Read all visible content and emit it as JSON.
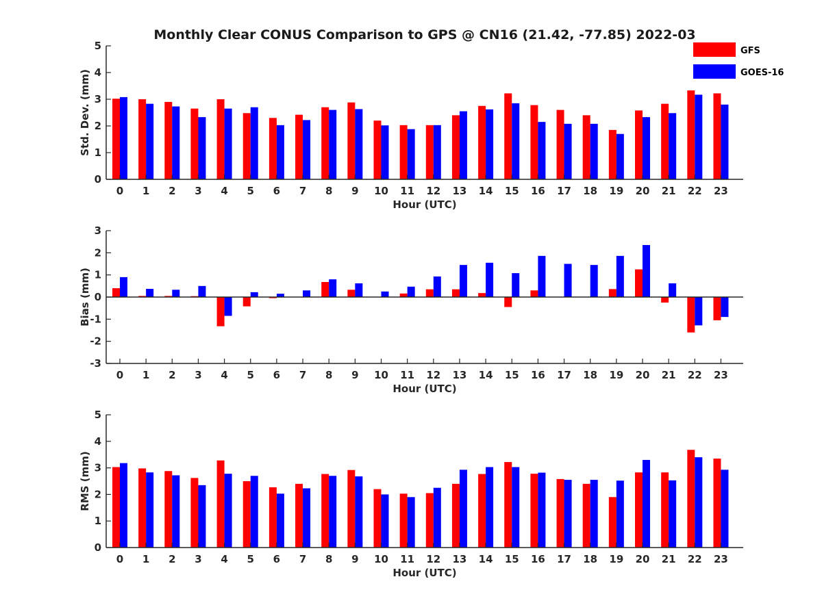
{
  "title": "Monthly Clear CONUS Comparison to GPS @ CN16 (21.42, -77.85) 2022-03",
  "legend": [
    {
      "name": "GFS",
      "color": "#ff0000"
    },
    {
      "name": "GOES-16",
      "color": "#0000ff"
    }
  ],
  "chart_data": [
    {
      "type": "bar",
      "xlabel": "Hour (UTC)",
      "ylabel": "Std. Dev. (mm)",
      "ylim": [
        0,
        5
      ],
      "yticks": [
        0,
        1,
        2,
        3,
        4,
        5
      ],
      "categories": [
        "0",
        "1",
        "2",
        "3",
        "4",
        "5",
        "6",
        "7",
        "8",
        "9",
        "10",
        "11",
        "12",
        "13",
        "14",
        "15",
        "16",
        "17",
        "18",
        "19",
        "20",
        "21",
        "22",
        "23"
      ],
      "series": [
        {
          "name": "GFS",
          "color": "#ff0000",
          "values": [
            3.02,
            3.0,
            2.9,
            2.65,
            3.0,
            2.48,
            2.3,
            2.42,
            2.7,
            2.88,
            2.2,
            2.03,
            2.03,
            2.4,
            2.75,
            3.22,
            2.78,
            2.6,
            2.4,
            1.85,
            2.58,
            2.83,
            3.33,
            3.22
          ]
        },
        {
          "name": "GOES-16",
          "color": "#0000ff",
          "values": [
            3.08,
            2.83,
            2.73,
            2.33,
            2.65,
            2.7,
            2.03,
            2.22,
            2.6,
            2.63,
            2.02,
            1.88,
            2.03,
            2.55,
            2.62,
            2.85,
            2.15,
            2.08,
            2.08,
            1.7,
            2.33,
            2.48,
            3.17,
            2.8
          ]
        }
      ]
    },
    {
      "type": "bar",
      "xlabel": "Hour (UTC)",
      "ylabel": "Bias (mm)",
      "ylim": [
        -3,
        3
      ],
      "yticks": [
        -3,
        -2,
        -1,
        0,
        1,
        2,
        3
      ],
      "categories": [
        "0",
        "1",
        "2",
        "3",
        "4",
        "5",
        "6",
        "7",
        "8",
        "9",
        "10",
        "11",
        "12",
        "13",
        "14",
        "15",
        "16",
        "17",
        "18",
        "19",
        "20",
        "21",
        "22",
        "23"
      ],
      "series": [
        {
          "name": "GFS",
          "color": "#ff0000",
          "values": [
            0.4,
            0.05,
            0.05,
            0.04,
            -1.32,
            -0.42,
            -0.05,
            0.0,
            0.68,
            0.33,
            0.0,
            0.16,
            0.35,
            0.35,
            0.18,
            -0.45,
            0.3,
            0.0,
            0.0,
            0.36,
            1.25,
            -0.25,
            -1.6,
            -1.05
          ]
        },
        {
          "name": "GOES-16",
          "color": "#0000ff",
          "values": [
            0.9,
            0.37,
            0.33,
            0.5,
            -0.85,
            0.22,
            0.15,
            0.3,
            0.8,
            0.62,
            0.25,
            0.47,
            0.93,
            1.45,
            1.55,
            1.08,
            1.86,
            1.5,
            1.45,
            1.86,
            2.35,
            0.62,
            -1.28,
            -0.9
          ]
        }
      ]
    },
    {
      "type": "bar",
      "xlabel": "Hour (UTC)",
      "ylabel": "RMS (mm)",
      "ylim": [
        0,
        5
      ],
      "yticks": [
        0,
        1,
        2,
        3,
        4,
        5
      ],
      "categories": [
        "0",
        "1",
        "2",
        "3",
        "4",
        "5",
        "6",
        "7",
        "8",
        "9",
        "10",
        "11",
        "12",
        "13",
        "14",
        "15",
        "16",
        "17",
        "18",
        "19",
        "20",
        "21",
        "22",
        "23"
      ],
      "series": [
        {
          "name": "GFS",
          "color": "#ff0000",
          "values": [
            3.03,
            2.98,
            2.88,
            2.62,
            3.28,
            2.5,
            2.27,
            2.4,
            2.77,
            2.92,
            2.2,
            2.03,
            2.05,
            2.4,
            2.77,
            3.22,
            2.78,
            2.58,
            2.4,
            1.9,
            2.83,
            2.83,
            3.68,
            3.35
          ]
        },
        {
          "name": "GOES-16",
          "color": "#0000ff",
          "values": [
            3.18,
            2.83,
            2.72,
            2.35,
            2.78,
            2.7,
            2.03,
            2.23,
            2.7,
            2.68,
            2.0,
            1.9,
            2.25,
            2.93,
            3.03,
            3.03,
            2.82,
            2.55,
            2.55,
            2.52,
            3.3,
            2.53,
            3.4,
            2.93
          ]
        }
      ]
    }
  ]
}
